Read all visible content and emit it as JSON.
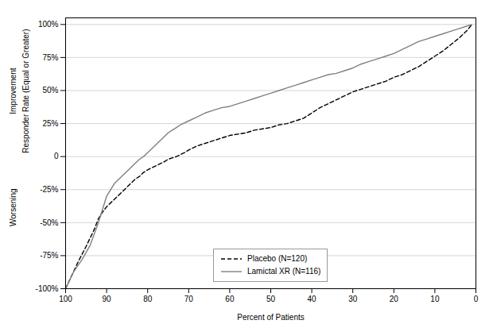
{
  "chart_data": {
    "type": "line",
    "xlabel": "Percent of Patients",
    "ylabel": "Responder Rate (Equal or Greater)",
    "annotations": [
      "Improvement",
      "Worsening"
    ],
    "xlim": [
      100,
      0
    ],
    "ylim": [
      -100,
      105
    ],
    "xticks": [
      0,
      10,
      20,
      30,
      40,
      50,
      60,
      70,
      80,
      90,
      100
    ],
    "yticks": [
      {
        "value": -100,
        "label": "-100%"
      },
      {
        "value": -75,
        "label": "-75%"
      },
      {
        "value": -50,
        "label": "-50%"
      },
      {
        "value": -25,
        "label": "-25%"
      },
      0,
      {
        "value": 25,
        "label": "25%"
      },
      {
        "value": 50,
        "label": "50%"
      },
      {
        "value": 75,
        "label": "75%"
      },
      {
        "value": 100,
        "label": "100%"
      }
    ],
    "grid": "y",
    "legend": "lower center",
    "series": [
      {
        "name": "Placebo (N=120)",
        "color": "#000000",
        "line_style": "dashed",
        "x": [
          100,
          97,
          95,
          93,
          92,
          91,
          90,
          89,
          88,
          87,
          86,
          85,
          84,
          83,
          82,
          81,
          80,
          78,
          76,
          75,
          73,
          71,
          70,
          68,
          66,
          64,
          62,
          60,
          58,
          56,
          54,
          52,
          50,
          48,
          46,
          44,
          42,
          40,
          38,
          36,
          34,
          32,
          30,
          28,
          26,
          24,
          22,
          20,
          18,
          16,
          14,
          12,
          10,
          8,
          6,
          4,
          2,
          1
        ],
        "values": [
          -100,
          -80,
          -68,
          -55,
          -47,
          -42,
          -38,
          -35,
          -32,
          -29,
          -26,
          -23,
          -20,
          -17,
          -15,
          -12,
          -10,
          -7,
          -4,
          -2,
          0,
          3,
          5,
          8,
          10,
          12,
          14,
          16,
          17,
          18,
          20,
          21,
          22,
          24,
          25,
          27,
          29,
          33,
          37,
          40,
          43,
          46,
          49,
          51,
          53,
          55,
          57,
          60,
          62,
          65,
          68,
          72,
          76,
          80,
          85,
          90,
          96,
          100
        ]
      },
      {
        "name": "Lamictal XR (N=116)",
        "color": "#808080",
        "line_style": "solid",
        "x": [
          100,
          98,
          96,
          94,
          92,
          91,
          90,
          89,
          88,
          87,
          86,
          85,
          84,
          83,
          82,
          81,
          80,
          79,
          78,
          77,
          76,
          75,
          74,
          73,
          72,
          70,
          68,
          66,
          64,
          62,
          60,
          58,
          56,
          54,
          52,
          50,
          48,
          46,
          44,
          42,
          40,
          38,
          36,
          34,
          32,
          30,
          28,
          26,
          24,
          22,
          20,
          18,
          16,
          14,
          12,
          10,
          8,
          6,
          4,
          2,
          1
        ],
        "values": [
          -100,
          -87,
          -78,
          -67,
          -50,
          -40,
          -30,
          -25,
          -20,
          -17,
          -14,
          -11,
          -8,
          -5,
          -2,
          0,
          3,
          6,
          9,
          12,
          15,
          18,
          20,
          22,
          24,
          27,
          30,
          33,
          35,
          37,
          38,
          40,
          42,
          44,
          46,
          48,
          50,
          52,
          54,
          56,
          58,
          60,
          62,
          63,
          65,
          67,
          70,
          72,
          74,
          76,
          78,
          81,
          84,
          87,
          89,
          91,
          93,
          95,
          97,
          99,
          100
        ]
      }
    ]
  }
}
